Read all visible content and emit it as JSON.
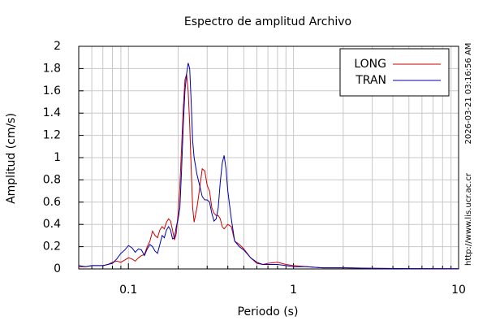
{
  "chart_data": {
    "type": "line",
    "title": "Espectro de amplitud Archivo",
    "xlabel": "Periodo (s)",
    "ylabel": "Amplitud (cm/s)",
    "annotations": [
      "2026-03-21 03:16:56 AM",
      "http://www.lis.ucr.ac.cr"
    ],
    "xscale": "log",
    "xlim": [
      0.05,
      10
    ],
    "xticks": [
      0.1,
      1,
      10
    ],
    "x_minor_ticks": [
      0.06,
      0.07,
      0.08,
      0.09,
      0.2,
      0.3,
      0.4,
      0.5,
      0.6,
      0.7,
      0.8,
      0.9,
      2,
      3,
      4,
      5,
      6,
      7,
      8,
      9
    ],
    "ylim": [
      0,
      2
    ],
    "yticks": [
      0,
      0.2,
      0.4,
      0.6,
      0.8,
      1,
      1.2,
      1.4,
      1.6,
      1.8,
      2
    ],
    "grid": true,
    "legend": "upper right",
    "x": [
      0.05,
      0.055,
      0.06,
      0.065,
      0.07,
      0.075,
      0.08,
      0.085,
      0.09,
      0.095,
      0.1,
      0.105,
      0.11,
      0.115,
      0.12,
      0.125,
      0.13,
      0.135,
      0.14,
      0.145,
      0.15,
      0.155,
      0.16,
      0.165,
      0.17,
      0.175,
      0.18,
      0.185,
      0.19,
      0.195,
      0.2,
      0.205,
      0.21,
      0.215,
      0.22,
      0.225,
      0.23,
      0.235,
      0.24,
      0.245,
      0.25,
      0.26,
      0.27,
      0.28,
      0.29,
      0.3,
      0.31,
      0.32,
      0.33,
      0.34,
      0.35,
      0.36,
      0.37,
      0.38,
      0.39,
      0.4,
      0.42,
      0.44,
      0.47,
      0.5,
      0.55,
      0.6,
      0.65,
      0.7,
      0.8,
      0.9,
      1.0,
      1.2,
      1.5,
      2,
      3,
      5,
      10
    ],
    "series": [
      {
        "name": "LONG",
        "color": "#cc0000",
        "values": [
          0.02,
          0.02,
          0.03,
          0.03,
          0.03,
          0.04,
          0.06,
          0.07,
          0.06,
          0.08,
          0.1,
          0.09,
          0.07,
          0.1,
          0.12,
          0.13,
          0.2,
          0.25,
          0.34,
          0.3,
          0.28,
          0.35,
          0.38,
          0.36,
          0.42,
          0.45,
          0.43,
          0.35,
          0.26,
          0.32,
          0.5,
          0.75,
          1.1,
          1.45,
          1.7,
          1.75,
          1.6,
          1.3,
          0.9,
          0.55,
          0.42,
          0.55,
          0.72,
          0.9,
          0.88,
          0.75,
          0.7,
          0.55,
          0.5,
          0.48,
          0.48,
          0.45,
          0.38,
          0.36,
          0.38,
          0.4,
          0.38,
          0.25,
          0.22,
          0.18,
          0.1,
          0.05,
          0.04,
          0.05,
          0.06,
          0.04,
          0.03,
          0.02,
          0.01,
          0.01,
          0.005,
          0.003,
          0.002
        ]
      },
      {
        "name": "TRAN",
        "color": "#0000aa",
        "values": [
          0.03,
          0.02,
          0.03,
          0.03,
          0.03,
          0.04,
          0.05,
          0.09,
          0.14,
          0.17,
          0.21,
          0.19,
          0.15,
          0.18,
          0.17,
          0.12,
          0.18,
          0.22,
          0.2,
          0.16,
          0.14,
          0.22,
          0.3,
          0.28,
          0.35,
          0.38,
          0.35,
          0.27,
          0.28,
          0.38,
          0.45,
          0.55,
          0.9,
          1.3,
          1.6,
          1.75,
          1.85,
          1.8,
          1.5,
          1.15,
          1.0,
          0.85,
          0.75,
          0.65,
          0.62,
          0.62,
          0.6,
          0.5,
          0.43,
          0.45,
          0.55,
          0.78,
          0.95,
          1.02,
          0.9,
          0.7,
          0.45,
          0.25,
          0.2,
          0.17,
          0.1,
          0.06,
          0.04,
          0.04,
          0.04,
          0.03,
          0.02,
          0.02,
          0.01,
          0.01,
          0.005,
          0.003,
          0.002
        ]
      }
    ]
  }
}
